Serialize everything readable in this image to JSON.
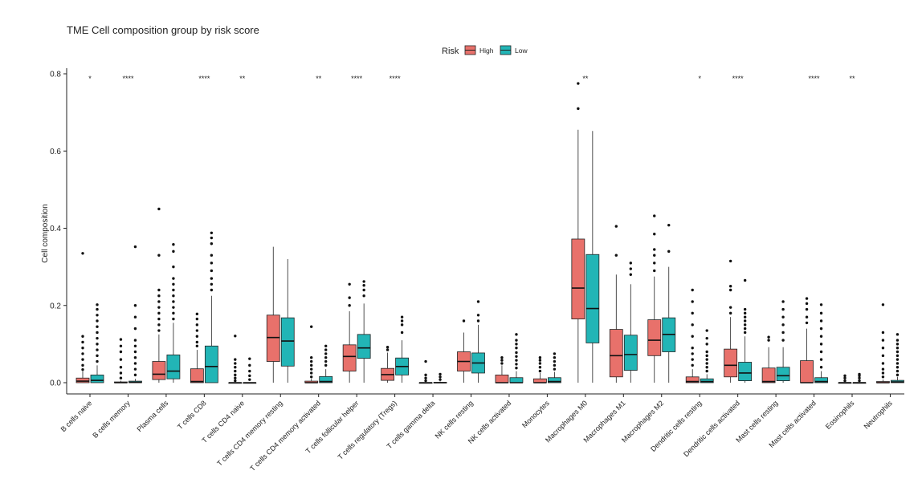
{
  "chart_data": {
    "type": "boxplot",
    "title": "TME Cell composition group by risk score",
    "xlabel": "",
    "ylabel": "Cell composition",
    "ylim": [
      -0.03,
      0.82
    ],
    "yticks": [
      0.0,
      0.2,
      0.4,
      0.6,
      0.8
    ],
    "ytick_labels": [
      "0.0",
      "0.2",
      "0.4",
      "0.6",
      "0.8"
    ],
    "grid": false,
    "legend": {
      "title": "Risk",
      "position": "top-center",
      "entries": [
        {
          "name": "High",
          "color": "#E8716B"
        },
        {
          "name": "Low",
          "color": "#22B5B6"
        }
      ]
    },
    "categories": [
      "B cells naive",
      "B cells memory",
      "Plasma cells",
      "T cells CD8",
      "T cells CD4 naive",
      "T cells CD4 memory resting",
      "T cells CD4 memory activated",
      "T cells follicular helper",
      "T cells regulatory (Tregs)",
      "T cells gamma delta",
      "NK cells resting",
      "NK cells activated",
      "Monocytes",
      "Macrophages M0",
      "Macrophages M1",
      "Macrophages M2",
      "Dendritic cells resting",
      "Dendritic cells activated",
      "Mast cells resting",
      "Mast cells activated",
      "Eosinophils",
      "Neutrophils"
    ],
    "significance": [
      "*",
      "****",
      "",
      "****",
      "**",
      "",
      "**",
      "****",
      "****",
      "",
      "",
      "",
      "",
      "**",
      "",
      "",
      "*",
      "****",
      "",
      "****",
      "**",
      ""
    ],
    "series": [
      {
        "name": "High",
        "color": "#E8716B",
        "boxes": [
          {
            "min": 0,
            "q1": 0.0,
            "median": 0.004,
            "q3": 0.012,
            "max": 0.03,
            "outliers": [
              0.034,
              0.045,
              0.06,
              0.075,
              0.09,
              0.105,
              0.12,
              0.335
            ]
          },
          {
            "min": 0,
            "q1": 0.0,
            "median": 0.0,
            "q3": 0.002,
            "max": 0.005,
            "outliers": [
              0.012,
              0.025,
              0.04,
              0.06,
              0.08,
              0.095,
              0.112
            ]
          },
          {
            "min": 0,
            "q1": 0.008,
            "median": 0.022,
            "q3": 0.055,
            "max": 0.125,
            "outliers": [
              0.135,
              0.15,
              0.165,
              0.18,
              0.195,
              0.21,
              0.225,
              0.24,
              0.33,
              0.45
            ]
          },
          {
            "min": 0,
            "q1": 0.0,
            "median": 0.003,
            "q3": 0.036,
            "max": 0.085,
            "outliers": [
              0.095,
              0.105,
              0.12,
              0.135,
              0.15,
              0.165,
              0.178
            ]
          },
          {
            "min": 0,
            "q1": 0.0,
            "median": 0.0,
            "q3": 0.0,
            "max": 0.0,
            "outliers": [
              0.005,
              0.012,
              0.02,
              0.03,
              0.04,
              0.05,
              0.06,
              0.121
            ]
          },
          {
            "min": 0.0,
            "q1": 0.055,
            "median": 0.117,
            "q3": 0.175,
            "max": 0.352,
            "outliers": []
          },
          {
            "min": 0,
            "q1": 0.0,
            "median": 0.0,
            "q3": 0.004,
            "max": 0.01,
            "outliers": [
              0.015,
              0.025,
              0.035,
              0.045,
              0.055,
              0.065,
              0.145
            ]
          },
          {
            "min": 0.0,
            "q1": 0.03,
            "median": 0.068,
            "q3": 0.098,
            "max": 0.185,
            "outliers": [
              0.2,
              0.22,
              0.255
            ]
          },
          {
            "min": 0.0,
            "q1": 0.006,
            "median": 0.021,
            "q3": 0.037,
            "max": 0.078,
            "outliers": [
              0.085,
              0.092
            ]
          },
          {
            "min": 0,
            "q1": 0.0,
            "median": 0.0,
            "q3": 0.0,
            "max": 0.0,
            "outliers": [
              0.005,
              0.012,
              0.02,
              0.055
            ]
          },
          {
            "min": 0.0,
            "q1": 0.03,
            "median": 0.055,
            "q3": 0.08,
            "max": 0.13,
            "outliers": [
              0.16
            ]
          },
          {
            "min": 0,
            "q1": 0.0,
            "median": 0.0,
            "q3": 0.02,
            "max": 0.045,
            "outliers": [
              0.05,
              0.058,
              0.065
            ]
          },
          {
            "min": 0,
            "q1": 0.0,
            "median": 0.0,
            "q3": 0.01,
            "max": 0.025,
            "outliers": [
              0.03,
              0.04,
              0.05,
              0.058,
              0.065
            ]
          },
          {
            "min": 0.0,
            "q1": 0.165,
            "median": 0.245,
            "q3": 0.372,
            "max": 0.655,
            "outliers": [
              0.71,
              0.775
            ]
          },
          {
            "min": 0.0,
            "q1": 0.015,
            "median": 0.07,
            "q3": 0.138,
            "max": 0.28,
            "outliers": [
              0.33,
              0.405
            ]
          },
          {
            "min": 0.0,
            "q1": 0.07,
            "median": 0.11,
            "q3": 0.163,
            "max": 0.275,
            "outliers": [
              0.29,
              0.31,
              0.33,
              0.345,
              0.385,
              0.432
            ]
          },
          {
            "min": 0,
            "q1": 0.0,
            "median": 0.003,
            "q3": 0.015,
            "max": 0.035,
            "outliers": [
              0.045,
              0.06,
              0.075,
              0.09,
              0.12,
              0.15,
              0.18,
              0.21,
              0.24
            ]
          },
          {
            "min": 0.0,
            "q1": 0.015,
            "median": 0.045,
            "q3": 0.087,
            "max": 0.17,
            "outliers": [
              0.18,
              0.195,
              0.24,
              0.25,
              0.315
            ]
          },
          {
            "min": 0,
            "q1": 0.0,
            "median": 0.003,
            "q3": 0.038,
            "max": 0.092,
            "outliers": [
              0.11,
              0.118
            ]
          },
          {
            "min": 0,
            "q1": 0.0,
            "median": 0.0,
            "q3": 0.057,
            "max": 0.14,
            "outliers": [
              0.155,
              0.17,
              0.19,
              0.205,
              0.218
            ]
          },
          {
            "min": 0,
            "q1": 0.0,
            "median": 0.0,
            "q3": 0.0,
            "max": 0.0,
            "outliers": [
              0.005,
              0.012,
              0.018
            ]
          },
          {
            "min": 0,
            "q1": 0.0,
            "median": 0.0,
            "q3": 0.003,
            "max": 0.008,
            "outliers": [
              0.015,
              0.025,
              0.035,
              0.05,
              0.07,
              0.09,
              0.11,
              0.13,
              0.202
            ]
          }
        ]
      },
      {
        "name": "Low",
        "color": "#22B5B6",
        "boxes": [
          {
            "min": 0,
            "q1": 0.0,
            "median": 0.006,
            "q3": 0.02,
            "max": 0.045,
            "outliers": [
              0.055,
              0.07,
              0.085,
              0.1,
              0.115,
              0.13,
              0.145,
              0.16,
              0.175,
              0.19,
              0.202
            ]
          },
          {
            "min": 0,
            "q1": 0.0,
            "median": 0.001,
            "q3": 0.004,
            "max": 0.01,
            "outliers": [
              0.02,
              0.035,
              0.05,
              0.065,
              0.08,
              0.095,
              0.11,
              0.14,
              0.17,
              0.2,
              0.352
            ]
          },
          {
            "min": 0,
            "q1": 0.01,
            "median": 0.03,
            "q3": 0.072,
            "max": 0.155,
            "outliers": [
              0.165,
              0.18,
              0.195,
              0.21,
              0.225,
              0.24,
              0.255,
              0.27,
              0.3,
              0.34,
              0.358
            ]
          },
          {
            "min": 0,
            "q1": 0.0,
            "median": 0.042,
            "q3": 0.095,
            "max": 0.225,
            "outliers": [
              0.24,
              0.255,
              0.27,
              0.29,
              0.31,
              0.33,
              0.36,
              0.375,
              0.388
            ]
          },
          {
            "min": 0,
            "q1": 0.0,
            "median": 0.0,
            "q3": 0.0,
            "max": 0.0,
            "outliers": [
              0.008,
              0.018,
              0.03,
              0.045,
              0.062
            ]
          },
          {
            "min": 0.0,
            "q1": 0.043,
            "median": 0.108,
            "q3": 0.168,
            "max": 0.32,
            "outliers": []
          },
          {
            "min": 0,
            "q1": 0.0,
            "median": 0.003,
            "q3": 0.016,
            "max": 0.035,
            "outliers": [
              0.045,
              0.055,
              0.065,
              0.075,
              0.085,
              0.095
            ]
          },
          {
            "min": 0.0,
            "q1": 0.063,
            "median": 0.09,
            "q3": 0.125,
            "max": 0.205,
            "outliers": [
              0.225,
              0.24,
              0.252,
              0.262
            ]
          },
          {
            "min": 0.0,
            "q1": 0.02,
            "median": 0.042,
            "q3": 0.064,
            "max": 0.11,
            "outliers": [
              0.13,
              0.15,
              0.16,
              0.17
            ]
          },
          {
            "min": 0,
            "q1": 0.0,
            "median": 0.0,
            "q3": 0.001,
            "max": 0.003,
            "outliers": [
              0.008,
              0.015,
              0.022
            ]
          },
          {
            "min": 0.0,
            "q1": 0.025,
            "median": 0.051,
            "q3": 0.077,
            "max": 0.15,
            "outliers": [
              0.16,
              0.175,
              0.21
            ]
          },
          {
            "min": 0,
            "q1": 0.0,
            "median": 0.0,
            "q3": 0.013,
            "max": 0.03,
            "outliers": [
              0.038,
              0.048,
              0.058,
              0.068,
              0.078,
              0.09,
              0.1,
              0.11,
              0.125
            ]
          },
          {
            "min": 0,
            "q1": 0.0,
            "median": 0.003,
            "q3": 0.013,
            "max": 0.028,
            "outliers": [
              0.035,
              0.045,
              0.055,
              0.065,
              0.075
            ]
          },
          {
            "min": 0.0,
            "q1": 0.103,
            "median": 0.192,
            "q3": 0.332,
            "max": 0.652,
            "outliers": []
          },
          {
            "min": 0.0,
            "q1": 0.032,
            "median": 0.073,
            "q3": 0.123,
            "max": 0.255,
            "outliers": [
              0.28,
              0.295,
              0.31
            ]
          },
          {
            "min": 0.0,
            "q1": 0.08,
            "median": 0.125,
            "q3": 0.168,
            "max": 0.3,
            "outliers": [
              0.34,
              0.408
            ]
          },
          {
            "min": 0,
            "q1": 0.0,
            "median": 0.003,
            "q3": 0.01,
            "max": 0.022,
            "outliers": [
              0.03,
              0.04,
              0.05,
              0.06,
              0.07,
              0.08,
              0.1,
              0.115,
              0.135
            ]
          },
          {
            "min": 0.0,
            "q1": 0.005,
            "median": 0.025,
            "q3": 0.053,
            "max": 0.12,
            "outliers": [
              0.13,
              0.14,
              0.15,
              0.16,
              0.17,
              0.18,
              0.19,
              0.265
            ]
          },
          {
            "min": 0,
            "q1": 0.005,
            "median": 0.018,
            "q3": 0.04,
            "max": 0.092,
            "outliers": [
              0.11,
              0.13,
              0.15,
              0.17,
              0.19,
              0.21
            ]
          },
          {
            "min": 0,
            "q1": 0.0,
            "median": 0.003,
            "q3": 0.013,
            "max": 0.03,
            "outliers": [
              0.04,
              0.06,
              0.08,
              0.1,
              0.12,
              0.14,
              0.16,
              0.18,
              0.202
            ]
          },
          {
            "min": 0,
            "q1": 0.0,
            "median": 0.0,
            "q3": 0.0,
            "max": 0.0,
            "outliers": [
              0.005,
              0.012,
              0.018,
              0.022
            ]
          },
          {
            "min": 0,
            "q1": 0.0,
            "median": 0.002,
            "q3": 0.006,
            "max": 0.015,
            "outliers": [
              0.02,
              0.03,
              0.04,
              0.05,
              0.06,
              0.07,
              0.08,
              0.09,
              0.1,
              0.11,
              0.125
            ]
          }
        ]
      }
    ]
  }
}
